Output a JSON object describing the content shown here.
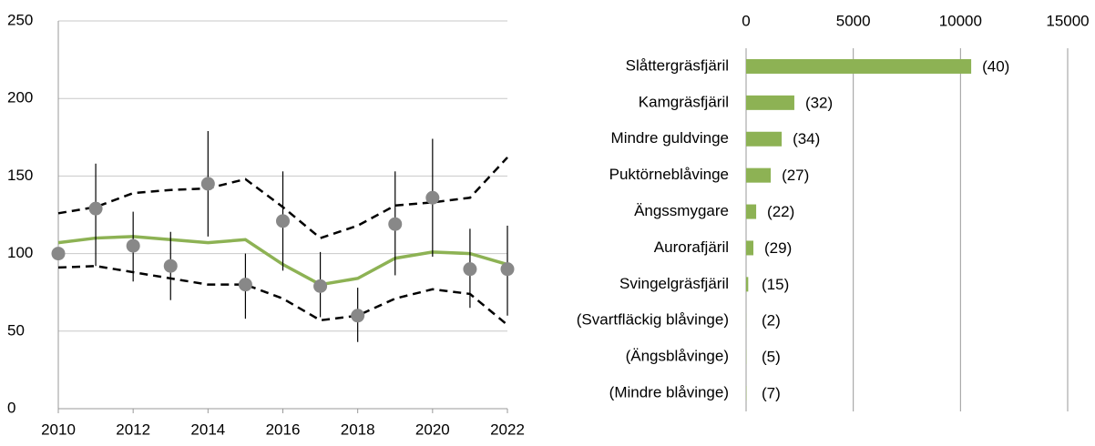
{
  "chart_data": [
    {
      "type": "line",
      "x": [
        2010,
        2011,
        2012,
        2013,
        2014,
        2015,
        2016,
        2017,
        2018,
        2019,
        2020,
        2021,
        2022
      ],
      "xlim": [
        2010,
        2022
      ],
      "xticks": [
        2010,
        2012,
        2014,
        2016,
        2018,
        2020,
        2022
      ],
      "ylim": [
        0,
        250
      ],
      "yticks": [
        0,
        50,
        100,
        150,
        200,
        250
      ],
      "grid": true,
      "series": [
        {
          "style": "dashed",
          "color": "#000000",
          "values": [
            126,
            130,
            139,
            141,
            142,
            148,
            130,
            110,
            118,
            131,
            133,
            136,
            162
          ]
        },
        {
          "style": "dashed",
          "color": "#000000",
          "values": [
            91,
            92,
            88,
            84,
            80,
            80,
            71,
            57,
            60,
            71,
            77,
            74,
            54
          ]
        },
        {
          "style": "solid",
          "color": "#8db254",
          "values": [
            107,
            110,
            111,
            109,
            107,
            109,
            93,
            80,
            84,
            97,
            101,
            100,
            93
          ]
        },
        {
          "style": "marker",
          "color": "#888888",
          "values": [
            100,
            129,
            105,
            92,
            145,
            80,
            121,
            79,
            60,
            119,
            136,
            90,
            90
          ],
          "low": [
            null,
            92,
            82,
            70,
            111,
            58,
            89,
            59,
            43,
            86,
            98,
            65,
            60
          ],
          "high": [
            null,
            158,
            127,
            114,
            179,
            100,
            153,
            101,
            78,
            153,
            174,
            116,
            118
          ]
        }
      ]
    },
    {
      "type": "hbar",
      "categories": [
        "Slåttergräsfjäril",
        "Kamgräsfjäril",
        "Mindre guldvinge",
        "Puktörneblåvinge",
        "Ängssmygare",
        "Aurorafjäril",
        "Svingelgräsfjäril",
        "(Svartfläckig blåvinge)",
        "(Ängsblåvinge)",
        "(Mindre blåvinge)"
      ],
      "values": [
        10500,
        2250,
        1660,
        1150,
        470,
        340,
        100,
        5,
        10,
        15
      ],
      "annotations": [
        "(40)",
        "(32)",
        "(34)",
        "(27)",
        "(22)",
        "(29)",
        "(15)",
        "(2)",
        "(5)",
        "(7)"
      ],
      "color": "#8db254",
      "xlim": [
        0,
        15000
      ],
      "xticks": [
        0,
        5000,
        10000,
        15000
      ],
      "grid": true,
      "x_axis_position": "top"
    }
  ]
}
